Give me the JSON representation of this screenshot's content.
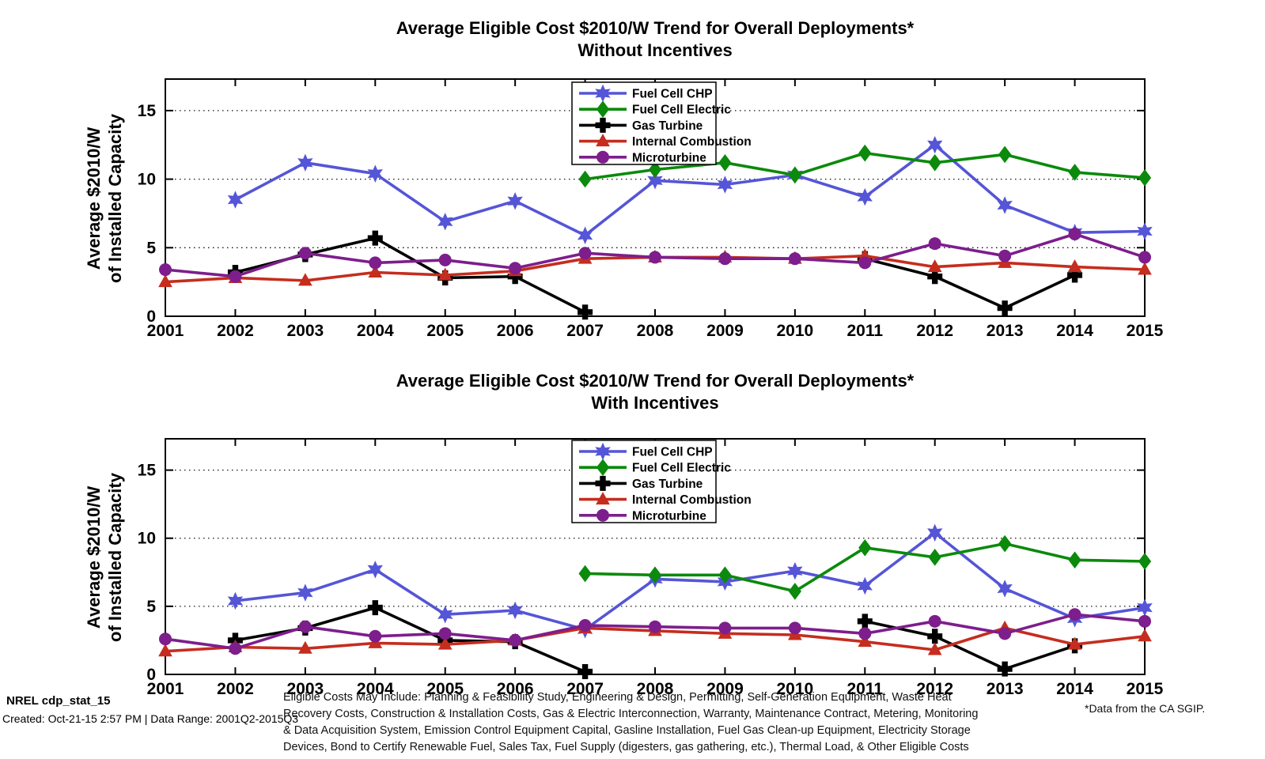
{
  "chart_data": [
    {
      "type": "line",
      "title": "Average Eligible Cost $2010/W Trend for Overall Deployments*",
      "subtitle": "Without Incentives",
      "ylabel": [
        "Average $2010/W",
        "of Installed Capacity"
      ],
      "x": [
        2001,
        2002,
        2003,
        2004,
        2005,
        2006,
        2007,
        2008,
        2009,
        2010,
        2011,
        2012,
        2013,
        2014,
        2015
      ],
      "ylim": [
        0,
        17.3
      ],
      "yticks": [
        0,
        5,
        10,
        15
      ],
      "grid": "dotted horizontal at 5,10,15",
      "legend_position": "top-center",
      "series": [
        {
          "name": "Fuel Cell CHP",
          "color": "#5555d7",
          "marker": "star6",
          "values": [
            null,
            8.5,
            11.2,
            10.4,
            6.9,
            8.4,
            5.9,
            9.9,
            9.6,
            10.3,
            8.7,
            12.5,
            8.1,
            6.1,
            6.2
          ]
        },
        {
          "name": "Fuel Cell Electric",
          "color": "#0b8a0b",
          "marker": "diamond",
          "values": [
            null,
            null,
            null,
            null,
            null,
            null,
            10.0,
            10.7,
            11.2,
            10.3,
            11.9,
            11.2,
            11.8,
            10.5,
            10.1
          ]
        },
        {
          "name": "Gas Turbine",
          "color": "#000000",
          "marker": "pluscross",
          "values": [
            null,
            3.2,
            4.5,
            5.7,
            2.8,
            2.9,
            0.3,
            null,
            null,
            null,
            4.2,
            2.9,
            0.6,
            3.0,
            null
          ]
        },
        {
          "name": "Internal Combustion",
          "color": "#c52d1e",
          "marker": "triangle-up",
          "values": [
            2.5,
            2.8,
            2.6,
            3.2,
            3.0,
            3.3,
            4.2,
            4.3,
            4.3,
            4.2,
            4.4,
            3.6,
            3.9,
            3.6,
            3.4
          ]
        },
        {
          "name": "Microturbine",
          "color": "#7d1e8c",
          "marker": "circle",
          "values": [
            3.4,
            2.9,
            4.6,
            3.9,
            4.1,
            3.5,
            4.6,
            4.3,
            4.2,
            4.2,
            3.9,
            5.3,
            4.4,
            6.0,
            4.3
          ]
        }
      ]
    },
    {
      "type": "line",
      "title": "Average Eligible Cost $2010/W Trend for Overall Deployments*",
      "subtitle": "With Incentives",
      "ylabel": [
        "Average $2010/W",
        "of Installed Capacity"
      ],
      "x": [
        2001,
        2002,
        2003,
        2004,
        2005,
        2006,
        2007,
        2008,
        2009,
        2010,
        2011,
        2012,
        2013,
        2014,
        2015
      ],
      "ylim": [
        0,
        17.3
      ],
      "yticks": [
        0,
        5,
        10,
        15
      ],
      "grid": "dotted horizontal at 5,10,15",
      "legend_position": "top-center",
      "series": [
        {
          "name": "Fuel Cell CHP",
          "color": "#5555d7",
          "marker": "star6",
          "values": [
            null,
            5.4,
            6.0,
            7.7,
            4.4,
            4.7,
            3.3,
            7.0,
            6.8,
            7.6,
            6.5,
            10.4,
            6.3,
            4.1,
            4.9
          ]
        },
        {
          "name": "Fuel Cell Electric",
          "color": "#0b8a0b",
          "marker": "diamond",
          "values": [
            null,
            null,
            null,
            null,
            null,
            null,
            7.4,
            7.3,
            7.3,
            6.1,
            9.3,
            8.6,
            9.6,
            8.4,
            8.3
          ]
        },
        {
          "name": "Gas Turbine",
          "color": "#000000",
          "marker": "pluscross",
          "values": [
            null,
            2.5,
            3.4,
            4.9,
            2.5,
            2.4,
            0.2,
            null,
            null,
            null,
            3.9,
            2.8,
            0.4,
            2.1,
            null
          ]
        },
        {
          "name": "Internal Combustion",
          "color": "#c52d1e",
          "marker": "triangle-up",
          "values": [
            1.7,
            2.0,
            1.9,
            2.3,
            2.2,
            2.5,
            3.4,
            3.2,
            3.0,
            2.9,
            2.4,
            1.8,
            3.4,
            2.2,
            2.8
          ]
        },
        {
          "name": "Microturbine",
          "color": "#7d1e8c",
          "marker": "circle",
          "values": [
            2.6,
            1.9,
            3.5,
            2.8,
            3.0,
            2.5,
            3.6,
            3.5,
            3.4,
            3.4,
            3.0,
            3.9,
            3.0,
            4.4,
            3.9
          ]
        }
      ]
    }
  ],
  "footer": {
    "left_title": "NREL cdp_stat_15",
    "left_meta": "Created: Oct-21-15  2:57 PM | Data Range: 2001Q2-2015Q3",
    "eligible_costs_lines": [
      "Eligible Costs May Include: Planning & Feasibility Study, Engineering & Design, Permitting, Self-Generation Equipment, Waste Heat",
      "Recovery Costs, Construction & Installation Costs, Gas & Electric Interconnection, Warranty, Maintenance Contract, Metering, Monitoring",
      "& Data Acquisition System, Emission Control Equipment Capital, Gasline Installation, Fuel Gas Clean-up Equipment, Electricity Storage",
      "Devices, Bond to Certify Renewable Fuel, Sales Tax, Fuel Supply (digesters, gas gathering, etc.), Thermal Load, & Other Eligible Costs"
    ],
    "right_note": "*Data from the CA SGIP."
  }
}
